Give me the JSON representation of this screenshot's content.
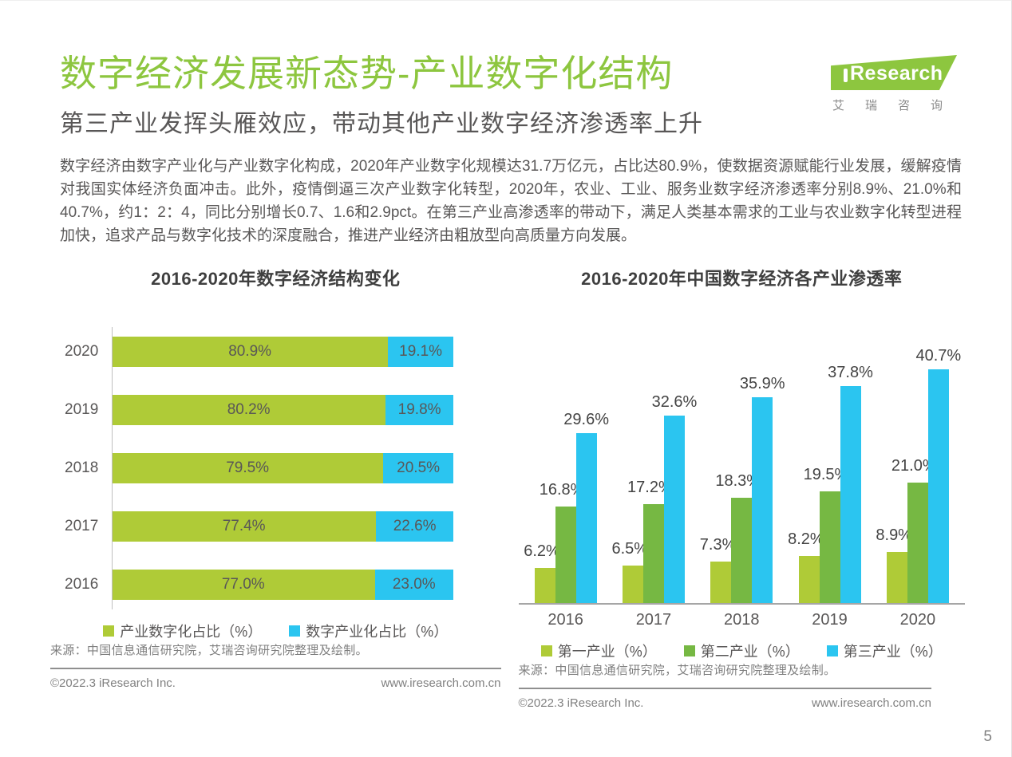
{
  "page": {
    "title": "数字经济发展新态势-产业数字化结构",
    "subtitle": "第三产业发挥头雁效应，带动其他产业数字经济渗透率上升",
    "body": "数字经济由数字产业化与产业数字化构成，2020年产业数字化规模达31.7万亿元，占比达80.9%，使数据资源赋能行业发展，缓解疫情对我国实体经济负面冲击。此外，疫情倒逼三次产业数字化转型，2020年，农业、工业、服务业数字经济渗透率分别8.9%、21.0%和40.7%，约1：2：4，同比分别增长0.7、1.6和2.9pct。在第三产业高渗透率的带动下，满足人类基本需求的工业与农业数字化转型进程加快，追求产品与数字化技术的深度融合，推进产业经济由粗放型向高质量方向发展。",
    "page_number": "5"
  },
  "logo": {
    "brand": "Research",
    "subtext": "艾瑞咨询"
  },
  "colors": {
    "brand_green": "#8DC63F",
    "series_light_green": "#AFCB37",
    "series_mid_green": "#76B843",
    "series_cyan": "#2BC5F0",
    "text_gray": "#595757"
  },
  "footer": {
    "copyright": "©2022.3 iResearch Inc.",
    "website": "www.iresearch.com.cn"
  },
  "chart_data": [
    {
      "type": "bar",
      "orientation": "horizontal-stacked",
      "title": "2016-2020年数字经济结构变化",
      "categories": [
        "2020",
        "2019",
        "2018",
        "2017",
        "2016"
      ],
      "series": [
        {
          "name": "产业数字化占比（%）",
          "color": "#AFCB37",
          "values": [
            80.9,
            80.2,
            79.5,
            77.4,
            77.0
          ]
        },
        {
          "name": "数字产业化占比（%）",
          "color": "#2BC5F0",
          "values": [
            19.1,
            19.8,
            20.5,
            22.6,
            23.0
          ]
        }
      ],
      "xlim": [
        0,
        100
      ],
      "grid": false,
      "legend_position": "bottom",
      "source": "来源：中国信息通信研究院，艾瑞咨询研究院整理及绘制。"
    },
    {
      "type": "bar",
      "orientation": "vertical-grouped",
      "title": "2016-2020年中国数字经济各产业渗透率",
      "categories": [
        "2016",
        "2017",
        "2018",
        "2019",
        "2020"
      ],
      "series": [
        {
          "name": "第一产业（%）",
          "color": "#AFCB37",
          "values": [
            6.2,
            6.5,
            7.3,
            8.2,
            8.9
          ]
        },
        {
          "name": "第二产业（%）",
          "color": "#76B843",
          "values": [
            16.8,
            17.2,
            18.3,
            19.5,
            21.0
          ]
        },
        {
          "name": "第三产业（%）",
          "color": "#2BC5F0",
          "values": [
            29.6,
            32.6,
            35.9,
            37.8,
            40.7
          ]
        }
      ],
      "ylim": [
        0,
        45
      ],
      "grid": false,
      "legend_position": "bottom",
      "source": "来源：中国信息通信研究院，艾瑞咨询研究院整理及绘制。"
    }
  ]
}
